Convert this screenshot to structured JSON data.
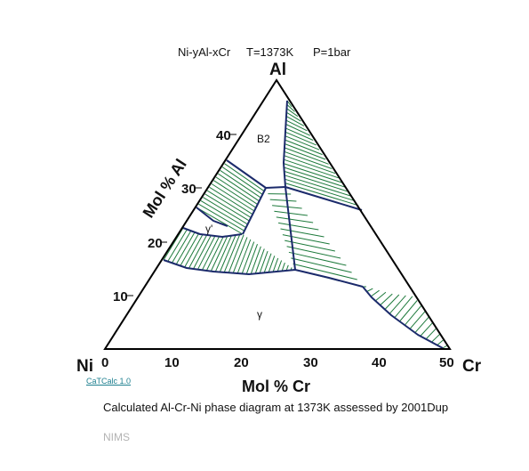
{
  "header": {
    "system": "Ni-yAl-xCr",
    "temperature": "T=1373K",
    "pressure": "P=1bar"
  },
  "corners": {
    "top": "Al",
    "left": "Ni",
    "right": "Cr"
  },
  "axes": {
    "left_title": "Mol % Al",
    "bottom_title": "Mol % Cr",
    "left_ticks": [
      "10",
      "20",
      "30",
      "40"
    ],
    "bottom_ticks": [
      "0",
      "10",
      "20",
      "30",
      "40",
      "50"
    ]
  },
  "phase_labels": {
    "b2": "B2",
    "gamma_prime": "γ'",
    "gamma": "γ"
  },
  "software_label": "CaTCalc 1.0",
  "caption": "Calculated Al-Cr-Ni phase diagram at 1373K assessed by 2001Dup",
  "footer": "NIMS",
  "colors": {
    "boundary": "#1b2a6b",
    "tieline": "#1e7a3c",
    "frame": "#000000"
  }
}
